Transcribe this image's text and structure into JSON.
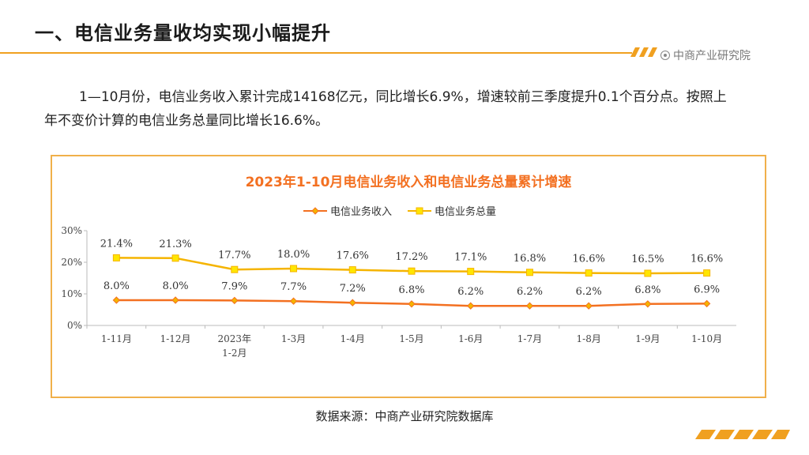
{
  "header": {
    "title": "一、电信业务量收均实现小幅提升",
    "brand": "中商产业研究院"
  },
  "body_text": "1—10月份，电信业务收入累计完成14168亿元，同比增长6.9%，增速较前三季度提升0.1个百分点。按照上年不变价计算的电信业务总量同比增长16.6%。",
  "source": "数据来源：中商产业研究院数据库",
  "colors": {
    "accent": "#f0a020",
    "series_revenue": "#f37021",
    "series_volume": "#f5b400",
    "marker_volume": "#ffe600"
  },
  "chart_data": {
    "type": "line",
    "title": "2023年1-10月电信业务收入和电信业务总量累计增速",
    "categories": [
      "1-11月",
      "1-12月",
      "2023年1-2月",
      "1-3月",
      "1-4月",
      "1-5月",
      "1-6月",
      "1-7月",
      "1-8月",
      "1-9月",
      "1-10月"
    ],
    "series": [
      {
        "name": "电信业务收入",
        "values": [
          8.0,
          8.0,
          7.9,
          7.7,
          7.2,
          6.8,
          6.2,
          6.2,
          6.2,
          6.8,
          6.9
        ],
        "labels": [
          "8.0%",
          "8.0%",
          "7.9%",
          "7.7%",
          "7.2%",
          "6.8%",
          "6.2%",
          "6.2%",
          "6.2%",
          "6.8%",
          "6.9%"
        ]
      },
      {
        "name": "电信业务总量",
        "values": [
          21.4,
          21.3,
          17.7,
          18.0,
          17.6,
          17.2,
          17.1,
          16.8,
          16.6,
          16.5,
          16.6
        ],
        "labels": [
          "21.4%",
          "21.3%",
          "17.7%",
          "18.0%",
          "17.6%",
          "17.2%",
          "17.1%",
          "16.8%",
          "16.6%",
          "16.5%",
          "16.6%"
        ]
      }
    ],
    "yticks": [
      "0%",
      "10%",
      "20%",
      "30%"
    ],
    "ylim": [
      0,
      30
    ],
    "legend": "top-center",
    "grid": false
  }
}
